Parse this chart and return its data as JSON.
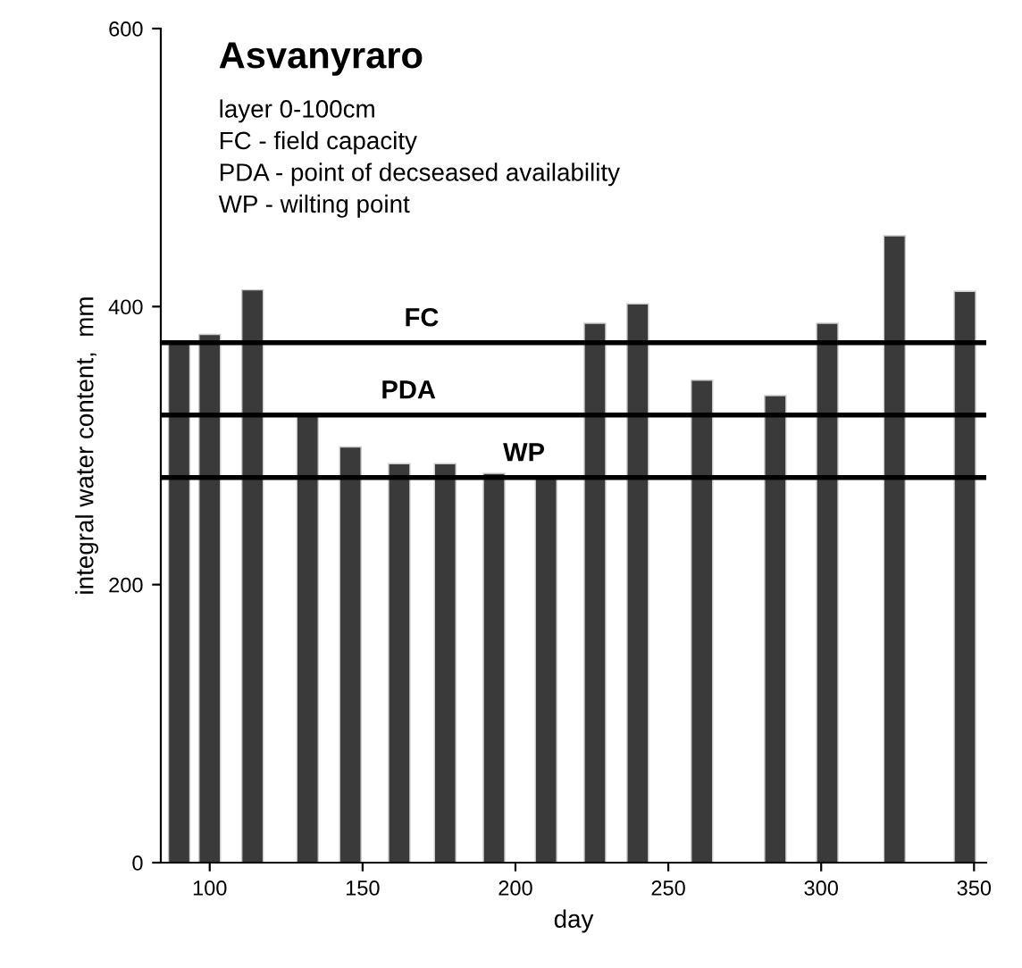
{
  "chart_data": {
    "type": "bar",
    "title": "Asvanyraro",
    "annotations": [
      "layer 0-100cm",
      "FC - field capacity",
      "PDA - point of decseased availability",
      "WP - wilting point"
    ],
    "xlabel": "day",
    "ylabel": "integral water content,  mm",
    "x": [
      90,
      100,
      114,
      132,
      146,
      162,
      177,
      193,
      210,
      226,
      240,
      261,
      285,
      302,
      324,
      347
    ],
    "values": [
      374,
      380,
      412,
      321,
      299,
      287,
      287,
      280,
      277,
      388,
      402,
      347,
      336,
      388,
      451,
      411
    ],
    "color": "#3a3a3a",
    "xlim": [
      84,
      354
    ],
    "xticks": [
      100,
      150,
      200,
      250,
      300,
      350
    ],
    "ylim": [
      0,
      600
    ],
    "yticks": [
      0,
      200,
      400,
      600
    ],
    "ref_lines": [
      {
        "axis": "y",
        "value": 374,
        "label": "FC",
        "color": "#000000"
      },
      {
        "axis": "y",
        "value": 322,
        "label": "PDA",
        "color": "#000000"
      },
      {
        "axis": "y",
        "value": 277,
        "label": "WP",
        "color": "#000000"
      }
    ],
    "grid": false,
    "legend": false
  }
}
